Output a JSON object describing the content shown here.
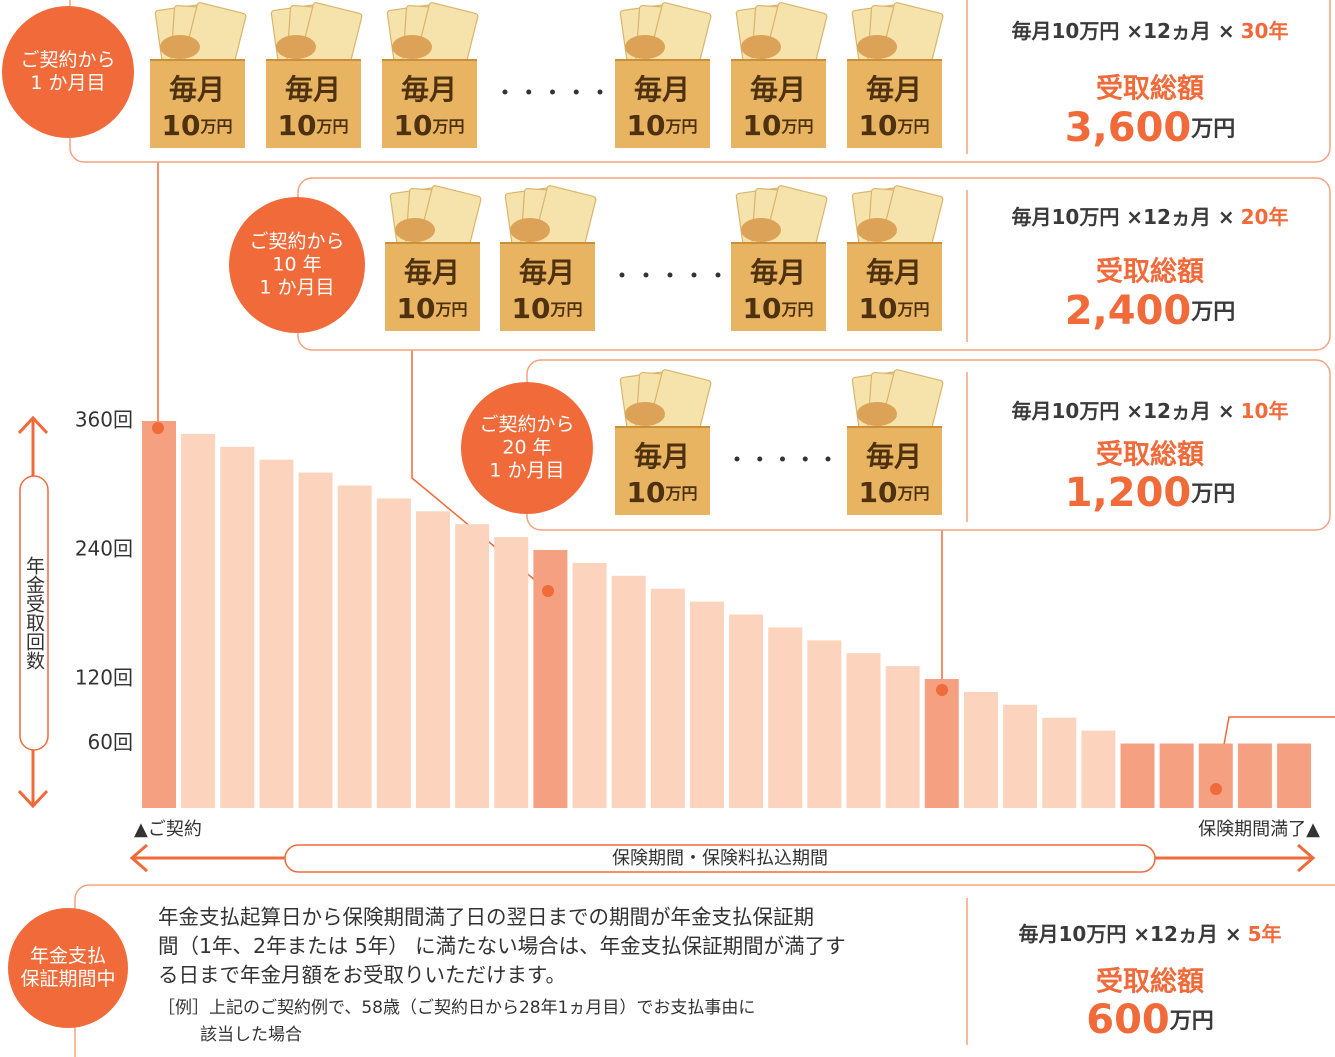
{
  "panels": [
    {
      "circle": [
        "ご契約から",
        "1 か月目"
      ],
      "formula": "毎月10万円 ×12ヵ月 ×",
      "years": "30年",
      "total_label": "受取総額",
      "total": "3,600",
      "unit": "万円"
    },
    {
      "circle": [
        "ご契約から",
        "10 年",
        "1 か月目"
      ],
      "formula": "毎月10万円 ×12ヵ月 ×",
      "years": "20年",
      "total_label": "受取総額",
      "total": "2,400",
      "unit": "万円"
    },
    {
      "circle": [
        "ご契約から",
        "20 年",
        "1 か月目"
      ],
      "formula": "毎月10万円 ×12ヵ月 ×",
      "years": "10年",
      "total_label": "受取総額",
      "total": "1,200",
      "unit": "万円"
    }
  ],
  "bag": {
    "top": "毎月",
    "amount": "10",
    "unit": "万円"
  },
  "guarantee": {
    "circle": [
      "年金支払",
      "保証期間中"
    ],
    "text": [
      "年金支払起算日から保険期間満了日の翌日までの期間が年金支払保証期",
      "間（1年、2年または 5年） に満たない場合は、年金支払保証期間が満了す",
      "る日まで年金月額をお受取りいただけます。"
    ],
    "example": [
      "［例］上記のご契約例で、58歳（ご契約日から28年1ヵ月目）でお支払事由に",
      "該当した場合"
    ],
    "formula": "毎月10万円 ×12ヵ月 ×",
    "years": "5年",
    "total_label": "受取総額",
    "total": "600",
    "unit": "万円"
  },
  "chart_data": {
    "type": "bar",
    "y_label": "年金受取回数",
    "values": [
      360,
      348,
      336,
      324,
      312,
      300,
      288,
      276,
      264,
      252,
      240,
      228,
      216,
      204,
      192,
      180,
      168,
      156,
      144,
      132,
      120,
      108,
      96,
      84,
      72,
      60,
      60,
      60,
      60,
      60
    ],
    "bar_colors": [
      "#f5a080",
      "#fcd4be",
      "#fcd4be",
      "#fcd4be",
      "#fcd4be",
      "#fcd4be",
      "#fcd4be",
      "#fcd4be",
      "#fcd4be",
      "#fcd4be",
      "#f5a080",
      "#fcd4be",
      "#fcd4be",
      "#fcd4be",
      "#fcd4be",
      "#fcd4be",
      "#fcd4be",
      "#fcd4be",
      "#fcd4be",
      "#fcd4be",
      "#f5a080",
      "#fcd4be",
      "#fcd4be",
      "#fcd4be",
      "#fcd4be",
      "#f5a080",
      "#f5a080",
      "#f5a080",
      "#f5a080",
      "#f5a080"
    ],
    "ylim": [
      0,
      360
    ],
    "yticks": [
      {
        "value": 360,
        "label": "360回"
      },
      {
        "value": 240,
        "label": "240回"
      },
      {
        "value": 120,
        "label": "120回"
      },
      {
        "value": 60,
        "label": "60回"
      }
    ],
    "start_label": "▲ご契約",
    "end_label": "保険期間満了▲",
    "period_label": "保険期間・保険料払込期間"
  }
}
